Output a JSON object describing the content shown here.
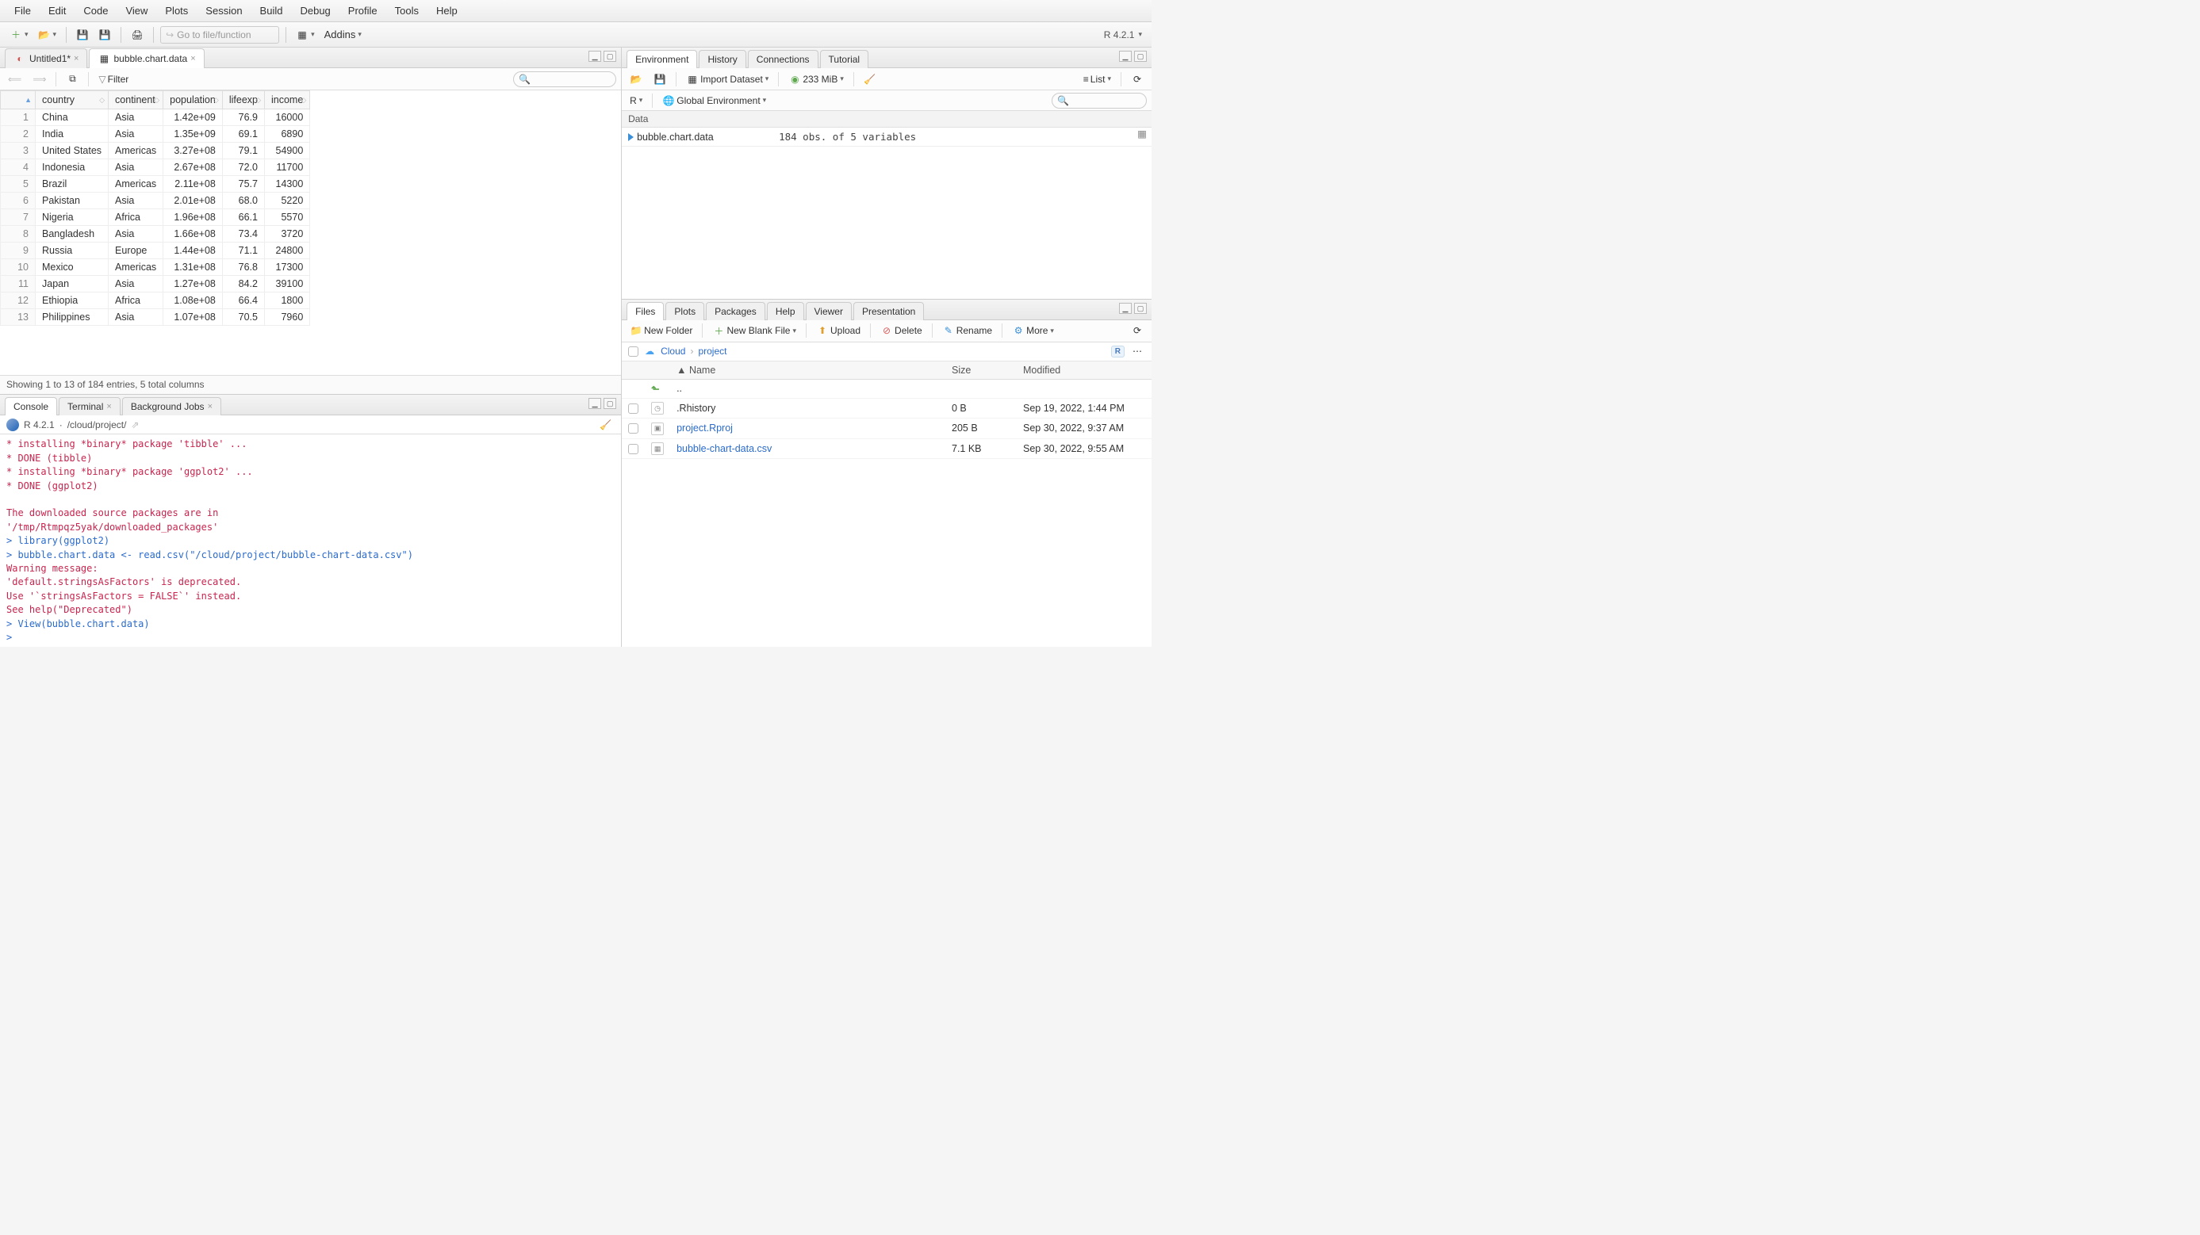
{
  "menu": [
    "File",
    "Edit",
    "Code",
    "View",
    "Plots",
    "Session",
    "Build",
    "Debug",
    "Profile",
    "Tools",
    "Help"
  ],
  "toolbar": {
    "goto_placeholder": "Go to file/function",
    "addins": "Addins",
    "r_version": "R 4.2.1"
  },
  "source": {
    "tabs": [
      {
        "label": "Untitled1*",
        "dirty": true,
        "active": false
      },
      {
        "label": "bubble.chart.data",
        "dirty": false,
        "active": true
      }
    ],
    "filter_label": "Filter",
    "columns": [
      "country",
      "continent",
      "population",
      "lifeexp",
      "income"
    ],
    "rows": [
      [
        "China",
        "Asia",
        "1.42e+09",
        "76.9",
        "16000"
      ],
      [
        "India",
        "Asia",
        "1.35e+09",
        "69.1",
        "6890"
      ],
      [
        "United States",
        "Americas",
        "3.27e+08",
        "79.1",
        "54900"
      ],
      [
        "Indonesia",
        "Asia",
        "2.67e+08",
        "72.0",
        "11700"
      ],
      [
        "Brazil",
        "Americas",
        "2.11e+08",
        "75.7",
        "14300"
      ],
      [
        "Pakistan",
        "Asia",
        "2.01e+08",
        "68.0",
        "5220"
      ],
      [
        "Nigeria",
        "Africa",
        "1.96e+08",
        "66.1",
        "5570"
      ],
      [
        "Bangladesh",
        "Asia",
        "1.66e+08",
        "73.4",
        "3720"
      ],
      [
        "Russia",
        "Europe",
        "1.44e+08",
        "71.1",
        "24800"
      ],
      [
        "Mexico",
        "Americas",
        "1.31e+08",
        "76.8",
        "17300"
      ],
      [
        "Japan",
        "Asia",
        "1.27e+08",
        "84.2",
        "39100"
      ],
      [
        "Ethiopia",
        "Africa",
        "1.08e+08",
        "66.4",
        "1800"
      ],
      [
        "Philippines",
        "Asia",
        "1.07e+08",
        "70.5",
        "7960"
      ]
    ],
    "status": "Showing 1 to 13 of 184 entries, 5 total columns"
  },
  "console": {
    "tabs": [
      "Console",
      "Terminal",
      "Background Jobs"
    ],
    "active_tab": 0,
    "info_version": "R 4.2.1",
    "info_path": "/cloud/project/",
    "lines": [
      {
        "cls": "c-red",
        "t": "* installing *binary* package 'tibble' ..."
      },
      {
        "cls": "c-red",
        "t": "* DONE (tibble)"
      },
      {
        "cls": "c-red",
        "t": "* installing *binary* package 'ggplot2' ..."
      },
      {
        "cls": "c-red",
        "t": "* DONE (ggplot2)"
      },
      {
        "cls": "c-red",
        "t": ""
      },
      {
        "cls": "c-red",
        "t": "The downloaded source packages are in"
      },
      {
        "cls": "c-red",
        "t": "        '/tmp/Rtmpqz5yak/downloaded_packages'"
      },
      {
        "cls": "c-blue",
        "t": "> library(ggplot2)"
      },
      {
        "cls": "c-blue",
        "t": "> bubble.chart.data <- read.csv(\"/cloud/project/bubble-chart-data.csv\")"
      },
      {
        "cls": "c-red",
        "t": "Warning message:"
      },
      {
        "cls": "c-red",
        "t": "'default.stringsAsFactors' is deprecated."
      },
      {
        "cls": "c-red",
        "t": "Use '`stringsAsFactors = FALSE`' instead."
      },
      {
        "cls": "c-red",
        "t": "See help(\"Deprecated\")"
      },
      {
        "cls": "c-blue",
        "t": ">   View(bubble.chart.data)"
      },
      {
        "cls": "c-blue",
        "t": "> "
      }
    ]
  },
  "env": {
    "tabs": [
      "Environment",
      "History",
      "Connections",
      "Tutorial"
    ],
    "active_tab": 0,
    "import": "Import Dataset",
    "memory": "233 MiB",
    "list": "List",
    "scope_lang": "R",
    "scope": "Global Environment",
    "section": "Data",
    "items": [
      {
        "name": "bubble.chart.data",
        "desc": "184 obs. of 5 variables"
      }
    ]
  },
  "files": {
    "tabs": [
      "Files",
      "Plots",
      "Packages",
      "Help",
      "Viewer",
      "Presentation"
    ],
    "active_tab": 0,
    "actions": {
      "new_folder": "New Folder",
      "new_blank": "New Blank File",
      "upload": "Upload",
      "delete": "Delete",
      "rename": "Rename",
      "more": "More"
    },
    "crumbs": [
      "Cloud",
      "project"
    ],
    "columns": [
      "Name",
      "Size",
      "Modified"
    ],
    "up": "..",
    "rows": [
      {
        "icon": "hist",
        "name": ".Rhistory",
        "size": "0 B",
        "mod": "Sep 19, 2022, 1:44 PM",
        "link": false
      },
      {
        "icon": "rproj",
        "name": "project.Rproj",
        "size": "205 B",
        "mod": "Sep 30, 2022, 9:37 AM",
        "link": true
      },
      {
        "icon": "csv",
        "name": "bubble-chart-data.csv",
        "size": "7.1 KB",
        "mod": "Sep 30, 2022, 9:55 AM",
        "link": true
      }
    ]
  }
}
